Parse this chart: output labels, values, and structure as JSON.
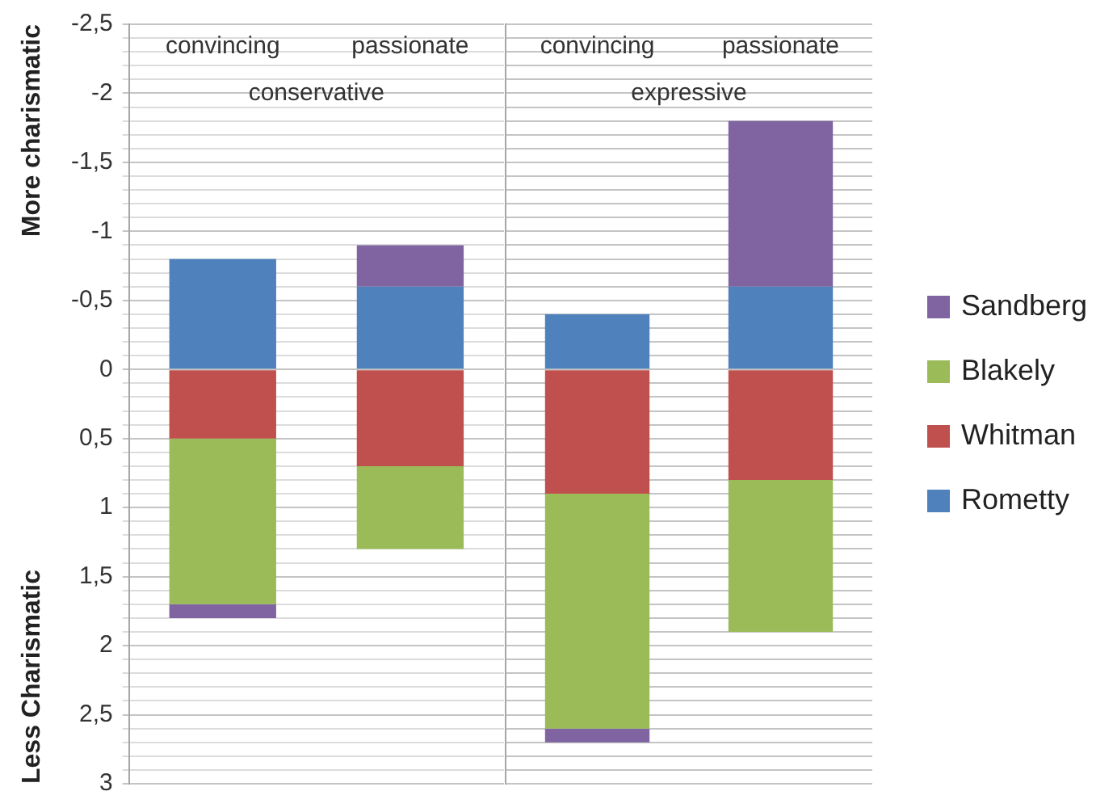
{
  "chart_data": [
    {
      "type": "bar",
      "stacked": true,
      "title": "conservative",
      "categories": [
        "convincing",
        "passionate"
      ],
      "series": [
        {
          "color": "#4f81bd",
          "values": [
            -0.8,
            -0.6
          ]
        },
        {
          "color": "#c0504d",
          "values": [
            0.5,
            0.7
          ]
        },
        {
          "color": "#9bbb59",
          "values": [
            1.2,
            0.6
          ]
        },
        {
          "color": "#8064a2",
          "values": [
            0.1,
            -0.3
          ]
        }
      ],
      "ylim": [
        3,
        -2.5
      ],
      "yticks": [
        {
          "value": -2.5,
          "label": "-2,5"
        },
        {
          "value": -2.4,
          "label": null
        },
        {
          "value": -2.3,
          "label": null
        },
        {
          "value": -2.2,
          "label": null
        },
        {
          "value": -2.1,
          "label": null
        },
        -2,
        {
          "value": -1.9,
          "label": null
        },
        {
          "value": -1.8,
          "label": null
        },
        {
          "value": -1.7,
          "label": null
        },
        {
          "value": -1.6,
          "label": null
        },
        {
          "value": -1.5,
          "label": "-1,5"
        },
        {
          "value": -1.4,
          "label": null
        },
        {
          "value": -1.3,
          "label": null
        },
        {
          "value": -1.2,
          "label": null
        },
        {
          "value": -1.1,
          "label": null
        },
        -1,
        {
          "value": -0.9,
          "label": null
        },
        {
          "value": -0.8,
          "label": null
        },
        {
          "value": -0.7,
          "label": null
        },
        {
          "value": -0.6,
          "label": null
        },
        {
          "value": -0.5,
          "label": "-0,5"
        },
        {
          "value": -0.4,
          "label": null
        },
        {
          "value": -0.3,
          "label": null
        },
        {
          "value": -0.2,
          "label": null
        },
        {
          "value": -0.1,
          "label": null
        },
        0,
        {
          "value": 0.1,
          "label": null
        },
        {
          "value": 0.2,
          "label": null
        },
        {
          "value": 0.3,
          "label": null
        },
        {
          "value": 0.4,
          "label": null
        },
        {
          "value": 0.5,
          "label": "0,5"
        },
        {
          "value": 0.6,
          "label": null
        },
        {
          "value": 0.7,
          "label": null
        },
        {
          "value": 0.8,
          "label": null
        },
        {
          "value": 0.9,
          "label": null
        },
        1,
        {
          "value": 1.1,
          "label": null
        },
        {
          "value": 1.2,
          "label": null
        },
        {
          "value": 1.3,
          "label": null
        },
        {
          "value": 1.4,
          "label": null
        },
        {
          "value": 1.5,
          "label": "1,5"
        },
        {
          "value": 1.6,
          "label": null
        },
        {
          "value": 1.7,
          "label": null
        },
        {
          "value": 1.8,
          "label": null
        },
        {
          "value": 1.9,
          "label": null
        },
        2,
        {
          "value": 2.1,
          "label": null
        },
        {
          "value": 2.2,
          "label": null
        },
        {
          "value": 2.3,
          "label": null
        },
        {
          "value": 2.4,
          "label": null
        },
        {
          "value": 2.5,
          "label": "2,5"
        },
        {
          "value": 2.6,
          "label": null
        },
        {
          "value": 2.7,
          "label": null
        },
        {
          "value": 2.8,
          "label": null
        },
        {
          "value": 2.9,
          "label": null
        },
        3
      ],
      "annotations": [
        "More charismatic",
        "Less Charismatic"
      ],
      "grid": "y"
    },
    {
      "type": "bar",
      "stacked": true,
      "title": "expressive",
      "categories": [
        "convincing",
        "passionate"
      ],
      "series": [
        {
          "name": "Rometty",
          "color": "#4f81bd",
          "values": [
            -0.4,
            -0.6
          ]
        },
        {
          "name": "Whitman",
          "color": "#c0504d",
          "values": [
            0.9,
            0.8
          ]
        },
        {
          "name": "Blakely",
          "color": "#9bbb59",
          "values": [
            1.7,
            1.1
          ]
        },
        {
          "name": "Sandberg",
          "color": "#8064a2",
          "values": [
            0.1,
            -1.2
          ]
        }
      ],
      "ylim": [
        3,
        -2.5
      ],
      "yticks": [
        -2.5,
        -2.4,
        -2.3,
        -2.2,
        -2.1,
        -2,
        -1.9,
        -1.8,
        -1.7,
        -1.6,
        -1.5,
        -1.4,
        -1.3,
        -1.2,
        -1.1,
        -1,
        -0.9,
        -0.8,
        -0.7,
        -0.6,
        -0.5,
        -0.4,
        -0.3,
        -0.2,
        -0.1,
        0,
        0.1,
        0.2,
        0.3,
        0.4,
        0.5,
        0.6,
        0.7,
        0.8,
        0.9,
        1,
        1.1,
        1.2,
        1.3,
        1.4,
        1.5,
        1.6,
        1.7,
        1.8,
        1.9,
        2,
        2.1,
        2.2,
        2.3,
        2.4,
        2.5,
        2.6,
        2.7,
        2.8,
        2.9,
        3
      ],
      "tick_labels": "x",
      "grid": "y",
      "legend": "right"
    }
  ]
}
